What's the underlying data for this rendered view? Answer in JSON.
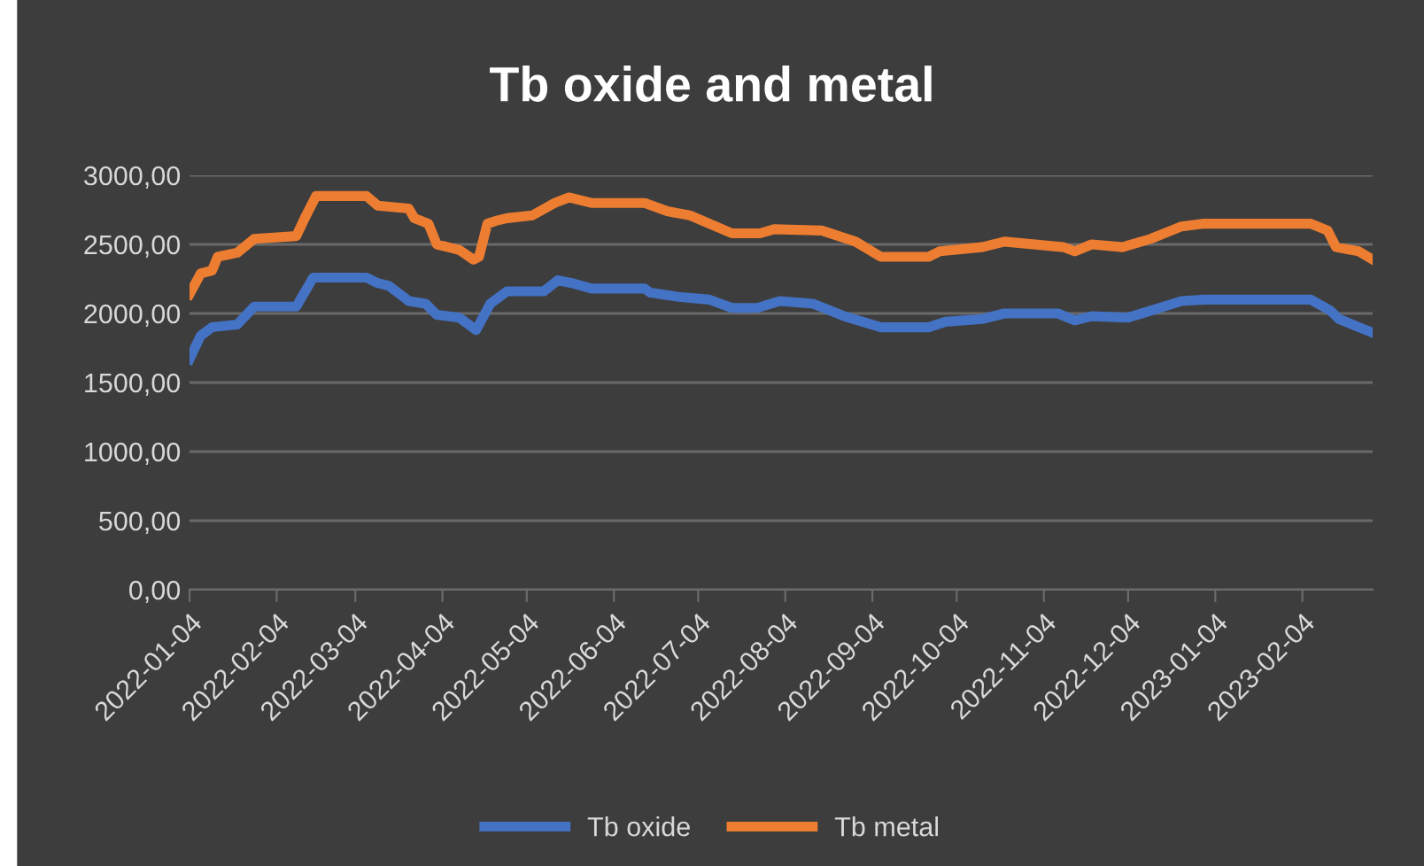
{
  "chart_data": {
    "type": "line",
    "title": "Tb oxide and metal",
    "series": [
      {
        "name": "Tb oxide",
        "color": "#4472c4",
        "x": [
          "2022-01-04",
          "2022-01-08",
          "2022-01-12",
          "2022-01-21",
          "2022-01-27",
          "2022-02-11",
          "2022-02-17",
          "2022-03-08",
          "2022-03-12",
          "2022-03-16",
          "2022-03-23",
          "2022-03-29",
          "2022-04-02",
          "2022-04-10",
          "2022-04-16",
          "2022-04-21",
          "2022-04-27",
          "2022-05-10",
          "2022-05-15",
          "2022-05-20",
          "2022-05-27",
          "2022-06-15",
          "2022-06-17",
          "2022-06-27",
          "2022-07-08",
          "2022-07-16",
          "2022-07-25",
          "2022-08-02",
          "2022-08-14",
          "2022-08-25",
          "2022-09-07",
          "2022-09-24",
          "2022-09-30",
          "2022-10-13",
          "2022-10-21",
          "2022-11-09",
          "2022-11-15",
          "2022-11-21",
          "2022-12-04",
          "2022-12-12",
          "2022-12-23",
          "2022-12-31",
          "2023-02-07",
          "2023-02-14",
          "2023-02-17",
          "2023-03-01"
        ],
        "values": [
          1670,
          1840,
          1900,
          1920,
          2050,
          2050,
          2260,
          2260,
          2220,
          2200,
          2090,
          2070,
          1990,
          1970,
          1880,
          2070,
          2160,
          2160,
          2240,
          2220,
          2180,
          2180,
          2150,
          2120,
          2100,
          2040,
          2040,
          2090,
          2070,
          1980,
          1900,
          1900,
          1940,
          1960,
          2000,
          2000,
          1950,
          1980,
          1970,
          2020,
          2090,
          2100,
          2100,
          2020,
          1960,
          1860
        ]
      },
      {
        "name": "Tb metal",
        "color": "#ed7d31",
        "x": [
          "2022-01-04",
          "2022-01-08",
          "2022-01-12",
          "2022-01-14",
          "2022-01-21",
          "2022-01-27",
          "2022-02-11",
          "2022-02-14",
          "2022-02-18",
          "2022-03-08",
          "2022-03-12",
          "2022-03-23",
          "2022-03-25",
          "2022-03-30",
          "2022-04-02",
          "2022-04-10",
          "2022-04-15",
          "2022-04-17",
          "2022-04-20",
          "2022-04-23",
          "2022-04-27",
          "2022-05-06",
          "2022-05-14",
          "2022-05-19",
          "2022-05-27",
          "2022-06-15",
          "2022-06-23",
          "2022-07-01",
          "2022-07-08",
          "2022-07-16",
          "2022-07-26",
          "2022-07-31",
          "2022-08-17",
          "2022-08-29",
          "2022-09-07",
          "2022-09-24",
          "2022-09-28",
          "2022-10-13",
          "2022-10-21",
          "2022-11-11",
          "2022-11-15",
          "2022-11-21",
          "2022-12-02",
          "2022-12-12",
          "2022-12-23",
          "2022-12-31",
          "2023-02-07",
          "2023-02-13",
          "2023-02-16",
          "2023-02-24",
          "2023-03-01"
        ],
        "values": [
          2140,
          2290,
          2310,
          2410,
          2440,
          2540,
          2560,
          2690,
          2850,
          2850,
          2780,
          2760,
          2690,
          2650,
          2500,
          2460,
          2390,
          2410,
          2650,
          2670,
          2690,
          2710,
          2800,
          2840,
          2800,
          2800,
          2740,
          2710,
          2650,
          2580,
          2580,
          2610,
          2600,
          2520,
          2410,
          2410,
          2450,
          2480,
          2520,
          2480,
          2450,
          2500,
          2480,
          2540,
          2630,
          2650,
          2650,
          2600,
          2480,
          2450,
          2390
        ]
      }
    ],
    "xlim": [
      "2022-01-04",
      "2023-03-01"
    ],
    "xticks": [
      "2022-01-04",
      "2022-02-04",
      "2022-03-04",
      "2022-04-04",
      "2022-05-04",
      "2022-06-04",
      "2022-07-04",
      "2022-08-04",
      "2022-09-04",
      "2022-10-04",
      "2022-11-04",
      "2022-12-04",
      "2023-01-04",
      "2023-02-04"
    ],
    "ylim": [
      0,
      3000
    ],
    "yticks": [
      {
        "value": 0,
        "label": "0,00"
      },
      {
        "value": 500,
        "label": "500,00"
      },
      {
        "value": 1000,
        "label": "1000,00"
      },
      {
        "value": 1500,
        "label": "1500,00"
      },
      {
        "value": 2000,
        "label": "2000,00"
      },
      {
        "value": 2500,
        "label": "2500,00"
      },
      {
        "value": 3000,
        "label": "3000,00"
      }
    ],
    "grid": "y",
    "legend": "bottom",
    "marker": "none",
    "line_style": "solid"
  }
}
